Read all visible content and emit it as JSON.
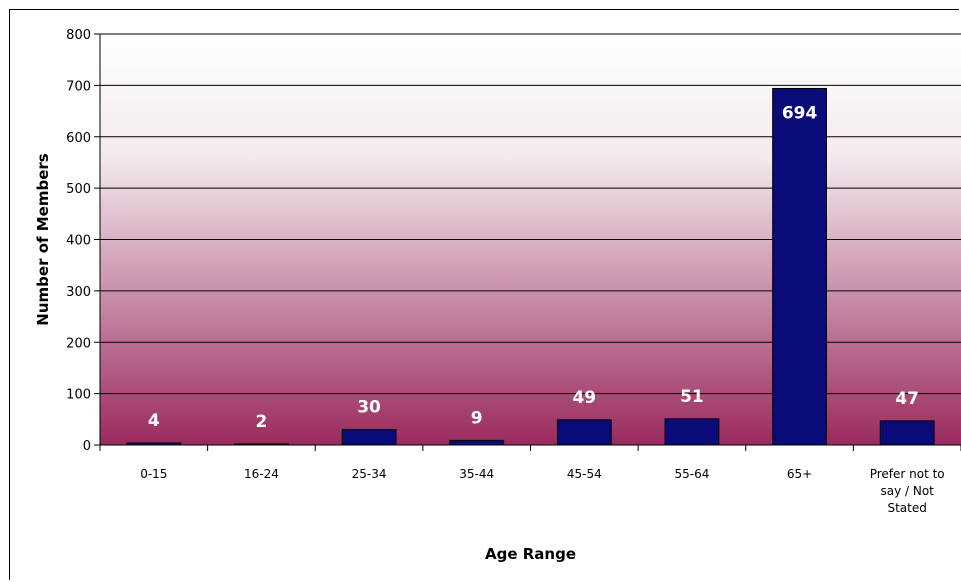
{
  "heading_fragment": "",
  "chart_data": {
    "type": "bar",
    "title": "",
    "xlabel": "Age Range",
    "ylabel": "Number of Members",
    "categories": [
      "0-15",
      "16-24",
      "25-34",
      "35-44",
      "45-54",
      "55-64",
      "65+",
      "Prefer not to say / Not Stated"
    ],
    "category_lines": [
      [
        "0-15"
      ],
      [
        "16-24"
      ],
      [
        "25-34"
      ],
      [
        "35-44"
      ],
      [
        "45-54"
      ],
      [
        "55-64"
      ],
      [
        "65+"
      ],
      [
        "Prefer not to",
        "say / Not",
        "Stated"
      ]
    ],
    "values": [
      4,
      2,
      30,
      9,
      49,
      51,
      694,
      47
    ],
    "ylim": [
      0,
      800
    ],
    "yticks": [
      0,
      100,
      200,
      300,
      400,
      500,
      600,
      700,
      800
    ],
    "grid": true,
    "legend": "none",
    "colors": {
      "bar_fill": "#0a0a78",
      "bar_stroke": "#000000",
      "plot_bg_top": "#ffffff",
      "plot_bg_bottom": "#9a2a5e",
      "data_label": "#ffffff"
    }
  }
}
